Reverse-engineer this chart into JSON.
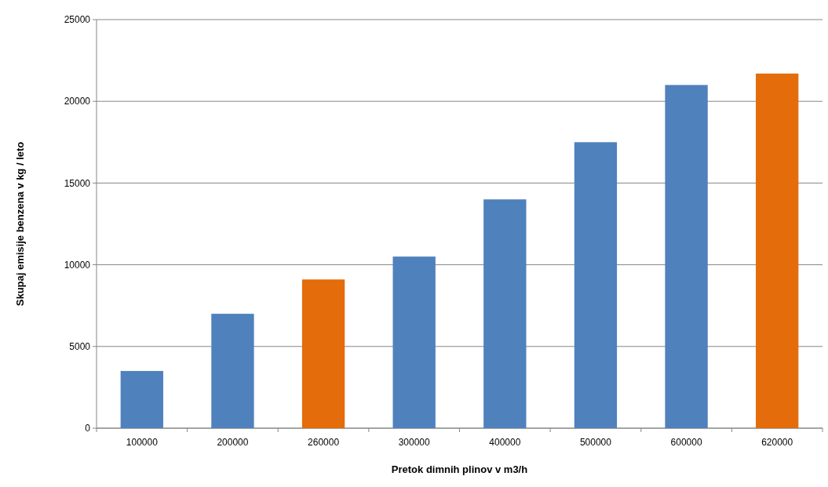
{
  "chart_data": {
    "type": "bar",
    "xlabel": "Pretok dimnih plinov v m3/h",
    "ylabel": "Skupaj emisije benzena v kg / leto",
    "categories": [
      "100000",
      "200000",
      "260000",
      "300000",
      "400000",
      "500000",
      "600000",
      "620000"
    ],
    "values": [
      3500,
      7000,
      9100,
      10500,
      14000,
      17500,
      21000,
      21700
    ],
    "colors": [
      "#4f81bd",
      "#4f81bd",
      "#e46c0a",
      "#4f81bd",
      "#4f81bd",
      "#4f81bd",
      "#4f81bd",
      "#e46c0a"
    ],
    "ylim": [
      0,
      25000
    ],
    "yticks": [
      0,
      5000,
      10000,
      15000,
      20000,
      25000
    ],
    "grid": "y"
  }
}
